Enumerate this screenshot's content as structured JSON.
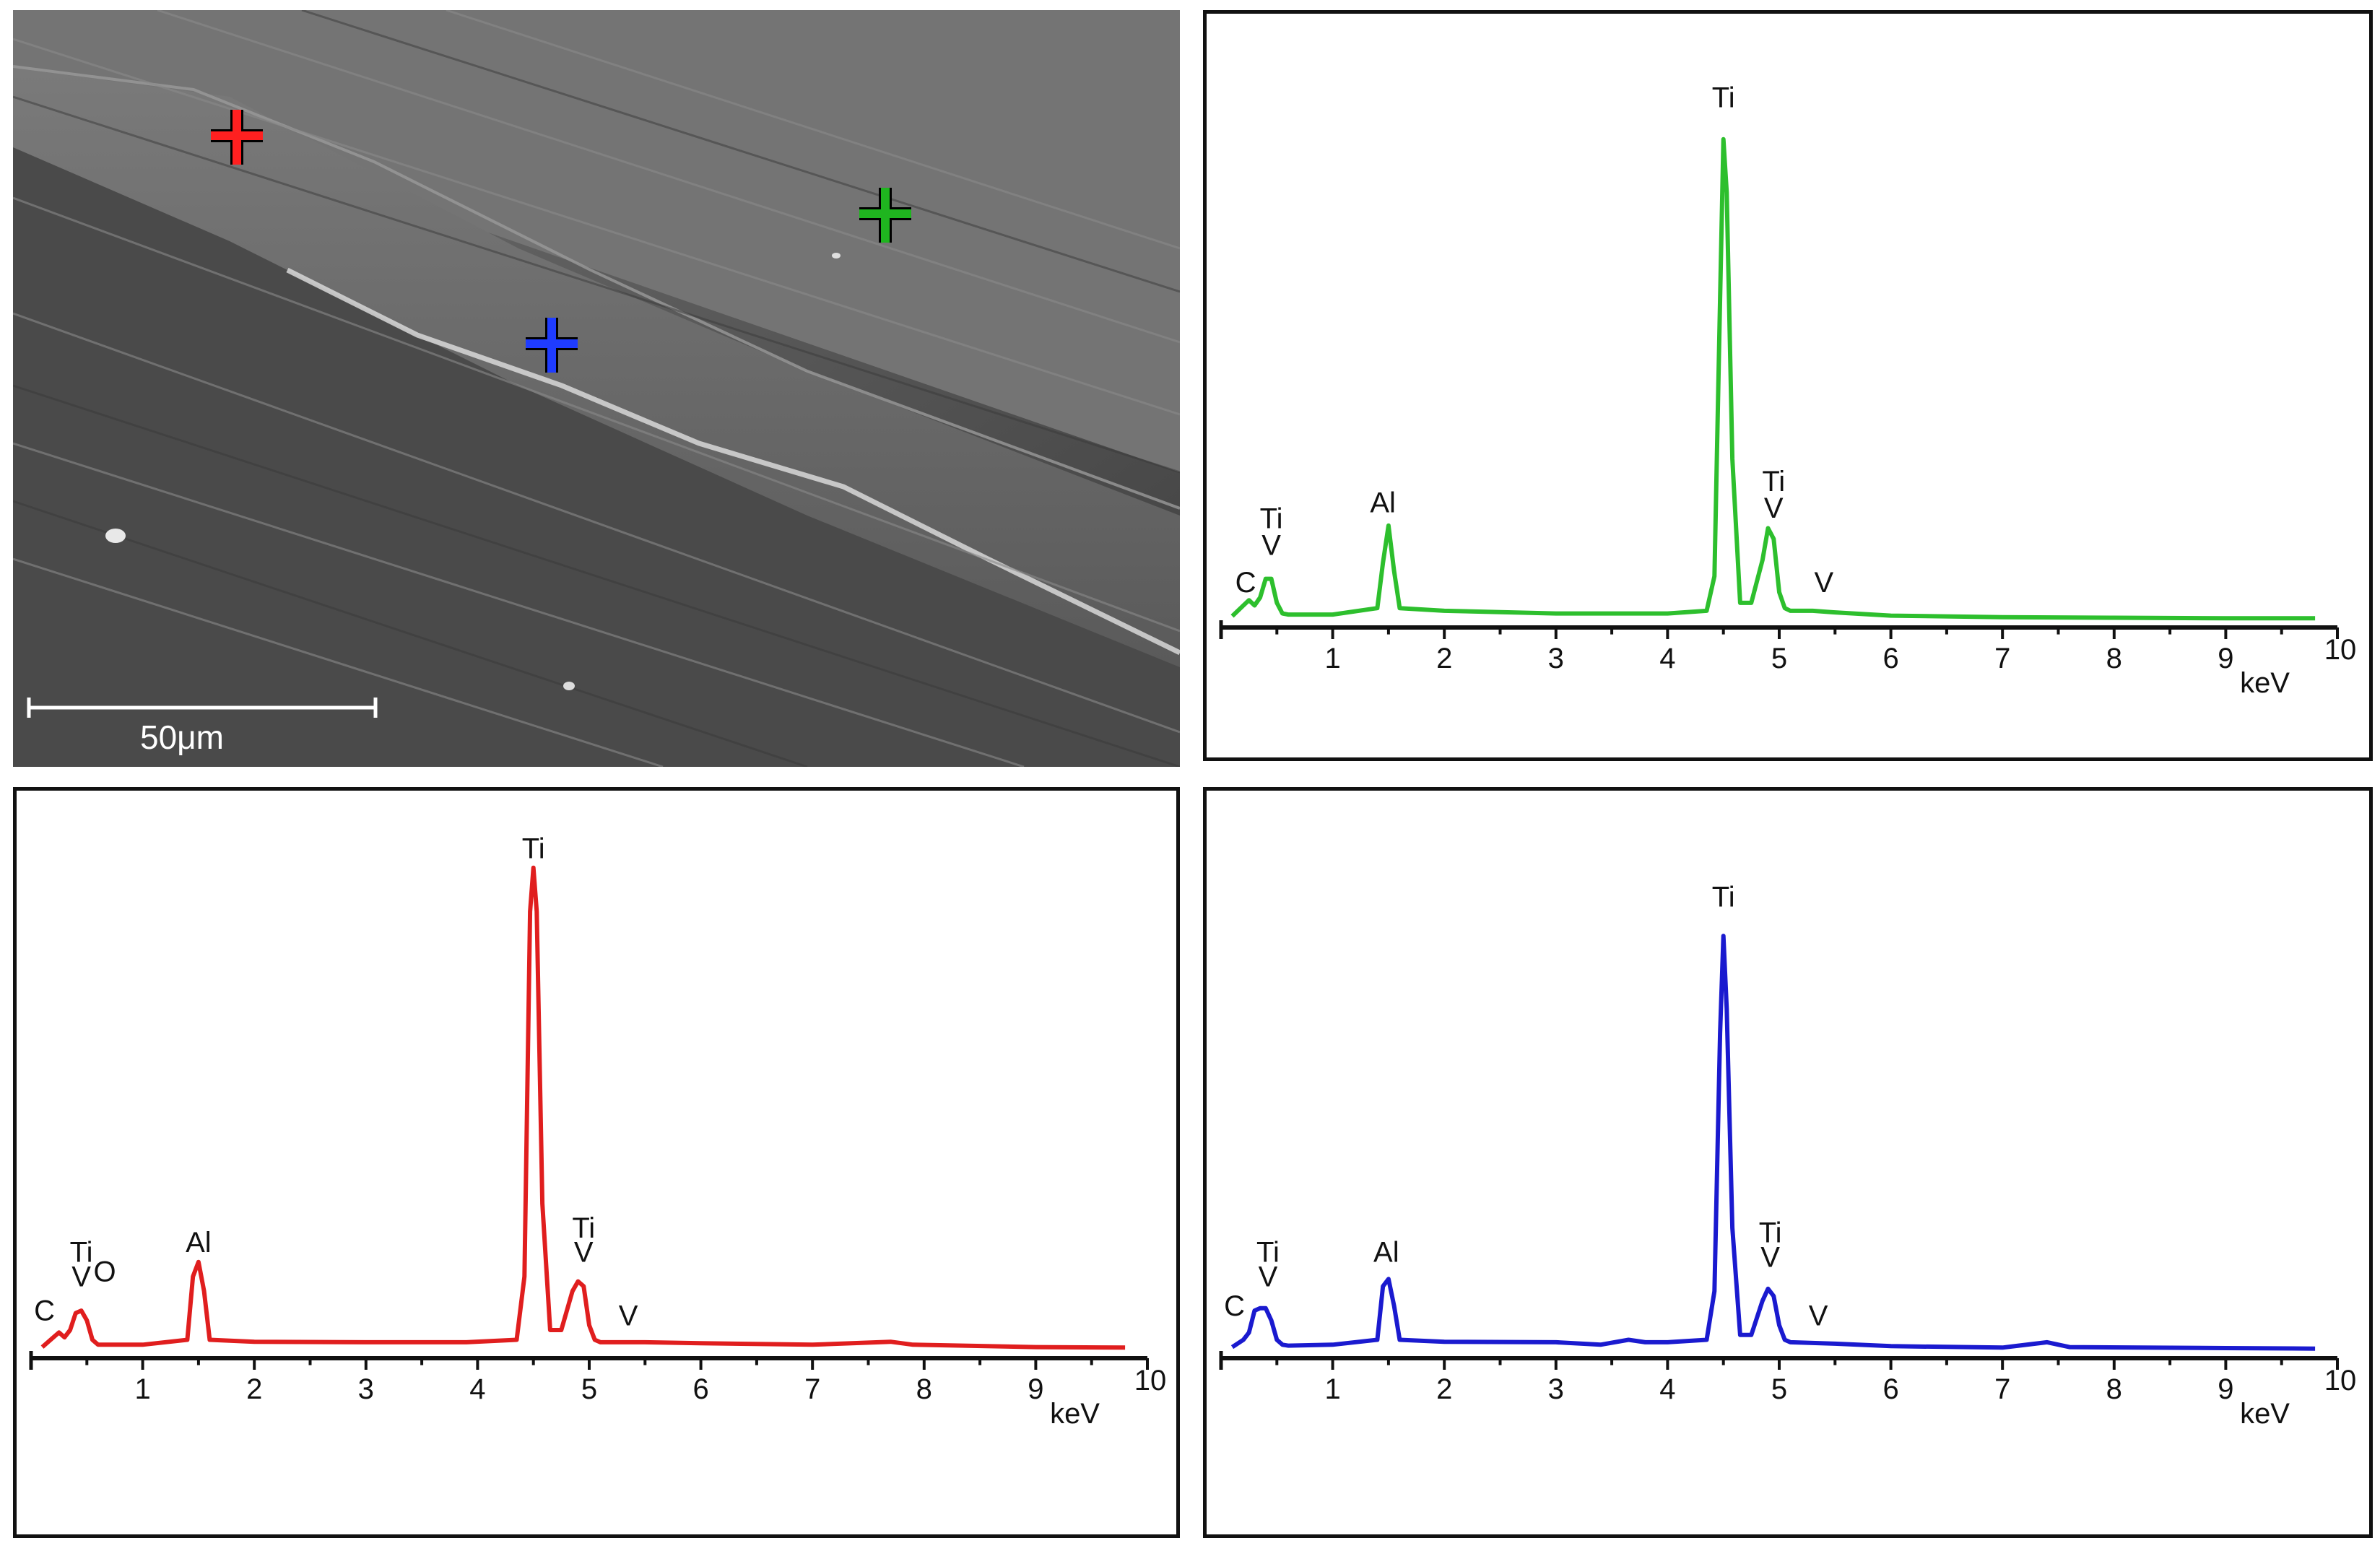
{
  "sem_image": {
    "scale_bar_label": "50μm",
    "markers": [
      {
        "color": "#ff2020"
      },
      {
        "color": "#1fb51f"
      },
      {
        "color": "#1f3cff"
      }
    ]
  },
  "axis_unit_label": "keV",
  "chart_data": [
    {
      "type": "line",
      "color": "#2dbf2d",
      "xlabel": "keV",
      "xlim": [
        0,
        10
      ],
      "ticks": [
        "1",
        "2",
        "3",
        "4",
        "5",
        "6",
        "7",
        "8",
        "9",
        "10"
      ],
      "x": [
        0.1,
        0.2,
        0.25,
        0.3,
        0.35,
        0.4,
        0.45,
        0.5,
        0.55,
        0.6,
        1.0,
        1.4,
        1.45,
        1.5,
        1.55,
        1.6,
        2.0,
        3.0,
        4.0,
        4.35,
        4.42,
        4.47,
        4.5,
        4.53,
        4.58,
        4.65,
        4.75,
        4.85,
        4.9,
        4.95,
        5.0,
        5.05,
        5.1,
        5.3,
        5.5,
        6.0,
        7.0,
        8.0,
        9.0,
        9.8
      ],
      "y": [
        0.5,
        2.5,
        3.5,
        2.5,
        4,
        7.5,
        7.5,
        3,
        1,
        0.8,
        0.8,
        2,
        10.5,
        17.5,
        9,
        2,
        1.5,
        1.0,
        1.0,
        1.5,
        8,
        60,
        90,
        80,
        30,
        3,
        3,
        11,
        17,
        15,
        5,
        2,
        1.5,
        1.5,
        1.2,
        0.6,
        0.3,
        0.2,
        0.1,
        0.1
      ],
      "ylim": [
        0,
        100
      ],
      "annotations": [
        {
          "text": "C",
          "x": 0.22,
          "y": 5
        },
        {
          "text": "Ti",
          "x": 0.45,
          "y": 17
        },
        {
          "text": "V",
          "x": 0.45,
          "y": 12
        },
        {
          "text": "Al",
          "x": 1.45,
          "y": 20
        },
        {
          "text": "Ti",
          "x": 4.5,
          "y": 96
        },
        {
          "text": "Ti",
          "x": 4.95,
          "y": 24
        },
        {
          "text": "V",
          "x": 4.95,
          "y": 19
        },
        {
          "text": "V",
          "x": 5.4,
          "y": 5
        }
      ]
    },
    {
      "type": "line",
      "color": "#e01e1e",
      "xlabel": "keV",
      "xlim": [
        0,
        10
      ],
      "ticks": [
        "1",
        "2",
        "3",
        "4",
        "5",
        "6",
        "7",
        "8",
        "9",
        "10"
      ],
      "x": [
        0.1,
        0.2,
        0.25,
        0.3,
        0.35,
        0.4,
        0.45,
        0.5,
        0.55,
        0.6,
        1.0,
        1.4,
        1.45,
        1.5,
        1.55,
        1.6,
        2.0,
        3.0,
        3.9,
        4.35,
        4.42,
        4.47,
        4.5,
        4.53,
        4.58,
        4.65,
        4.75,
        4.85,
        4.9,
        4.95,
        5.0,
        5.05,
        5.1,
        5.5,
        6.0,
        7.0,
        7.7,
        7.9,
        9.0,
        9.8
      ],
      "y": [
        0.5,
        2.5,
        3.5,
        2.5,
        4,
        7.5,
        8,
        6,
        2,
        1,
        1,
        2,
        15,
        18,
        12,
        2,
        1.6,
        1.5,
        1.5,
        2,
        15,
        90,
        99,
        90,
        30,
        4,
        4,
        12,
        14,
        13,
        5,
        2,
        1.5,
        1.5,
        1.3,
        1.0,
        1.6,
        1.0,
        0.5,
        0.4
      ],
      "ylim": [
        0,
        100
      ],
      "annotations": [
        {
          "text": "C",
          "x": 0.12,
          "y": 6
        },
        {
          "text": "Ti",
          "x": 0.45,
          "y": 18
        },
        {
          "text": "V",
          "x": 0.45,
          "y": 13
        },
        {
          "text": "O",
          "x": 0.66,
          "y": 14
        },
        {
          "text": "Al",
          "x": 1.5,
          "y": 20
        },
        {
          "text": "Ti",
          "x": 4.5,
          "y": 101
        },
        {
          "text": "Ti",
          "x": 4.95,
          "y": 23
        },
        {
          "text": "V",
          "x": 4.95,
          "y": 18
        },
        {
          "text": "V",
          "x": 5.35,
          "y": 5
        }
      ]
    },
    {
      "type": "line",
      "color": "#1a1acf",
      "xlabel": "keV",
      "xlim": [
        0,
        10
      ],
      "ticks": [
        "1",
        "2",
        "3",
        "4",
        "5",
        "6",
        "7",
        "8",
        "9",
        "10"
      ],
      "x": [
        0.1,
        0.2,
        0.25,
        0.3,
        0.35,
        0.4,
        0.45,
        0.5,
        0.55,
        0.6,
        1.0,
        1.4,
        1.45,
        1.5,
        1.55,
        1.6,
        2.0,
        3.0,
        3.4,
        3.65,
        3.8,
        4.0,
        4.35,
        4.42,
        4.47,
        4.5,
        4.53,
        4.58,
        4.65,
        4.75,
        4.85,
        4.9,
        4.95,
        5.0,
        5.05,
        5.1,
        5.5,
        6.0,
        7.0,
        7.4,
        7.6,
        9.0,
        9.8
      ],
      "y": [
        0.5,
        2,
        3.5,
        8,
        8.5,
        8.5,
        6,
        2,
        1,
        0.8,
        1,
        2,
        13,
        14.5,
        9,
        2,
        1.6,
        1.5,
        1.0,
        2,
        1.5,
        1.5,
        2,
        12,
        65,
        85,
        70,
        25,
        3,
        3,
        10,
        12.5,
        11,
        5,
        2,
        1.5,
        1.2,
        0.7,
        0.4,
        1.5,
        0.5,
        0.3,
        0.2
      ],
      "ylim": [
        0,
        100
      ],
      "annotations": [
        {
          "text": "C",
          "x": 0.12,
          "y": 7
        },
        {
          "text": "Ti",
          "x": 0.42,
          "y": 18
        },
        {
          "text": "V",
          "x": 0.42,
          "y": 13
        },
        {
          "text": "Al",
          "x": 1.48,
          "y": 18
        },
        {
          "text": "Ti",
          "x": 4.5,
          "y": 91
        },
        {
          "text": "Ti",
          "x": 4.92,
          "y": 22
        },
        {
          "text": "V",
          "x": 4.92,
          "y": 17
        },
        {
          "text": "V",
          "x": 5.35,
          "y": 5
        }
      ]
    }
  ]
}
